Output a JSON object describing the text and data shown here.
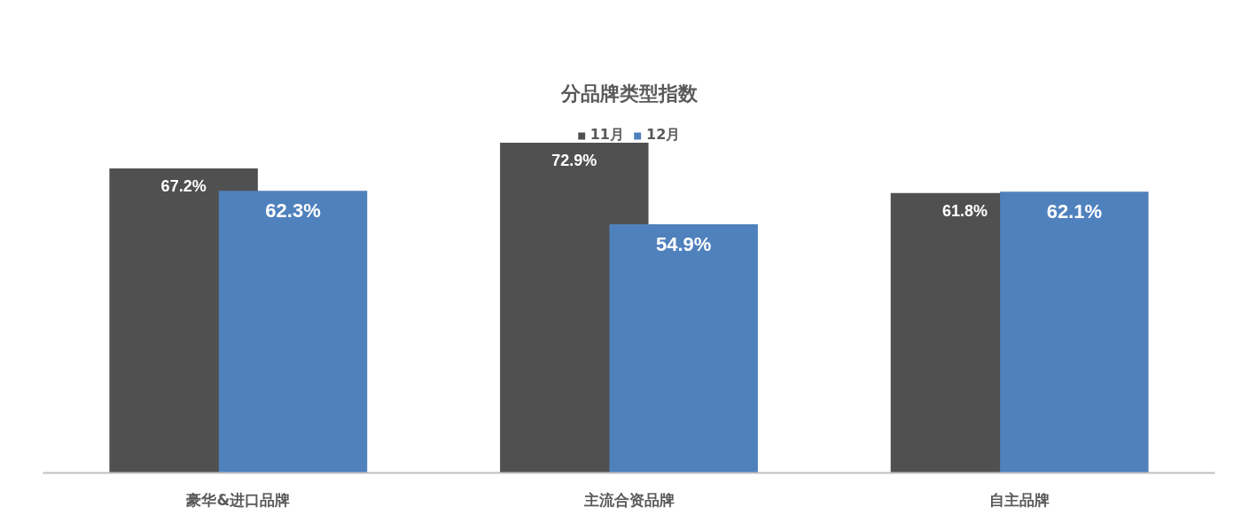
{
  "chart_data": {
    "type": "bar",
    "title": "分品牌类型指数",
    "categories": [
      "豪华&进口品牌",
      "主流合资品牌",
      "自主品牌"
    ],
    "series": [
      {
        "name": "11月",
        "color": "#505050",
        "values": [
          67.2,
          72.9,
          61.8
        ],
        "value_labels": [
          "67.2%",
          "72.9%",
          "61.8%"
        ]
      },
      {
        "name": "12月",
        "color": "#4f81bd",
        "values": [
          62.3,
          54.9,
          62.1
        ],
        "value_labels": [
          "62.3%",
          "54.9%",
          "62.1%"
        ]
      }
    ],
    "legend": "top",
    "tick_labels": "x"
  }
}
